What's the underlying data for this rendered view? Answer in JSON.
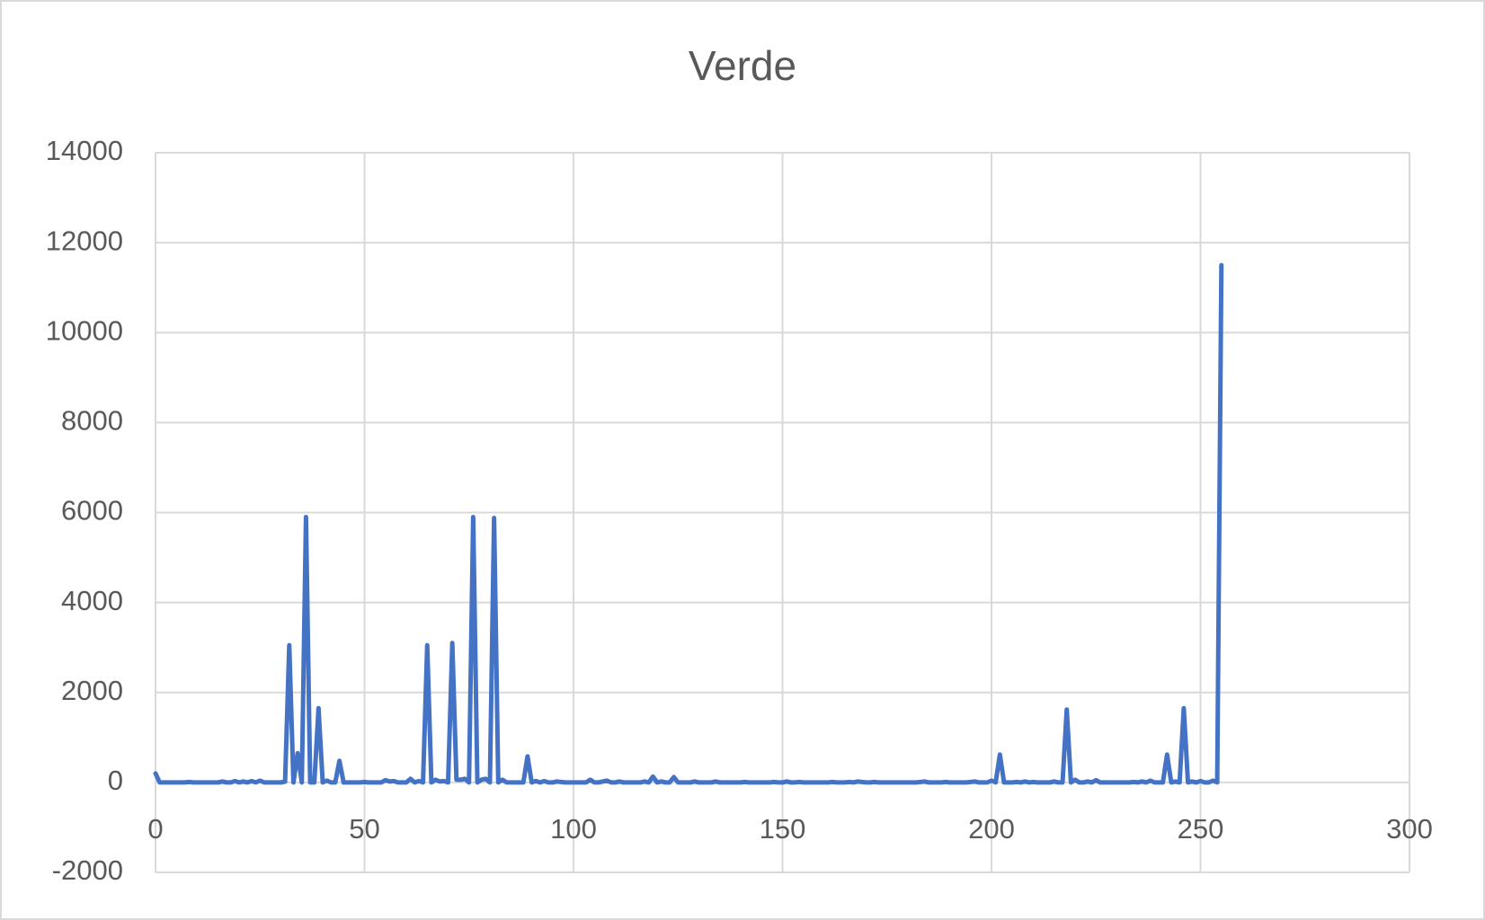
{
  "chart_data": {
    "type": "line",
    "title": "Verde",
    "x": [
      0,
      1,
      2,
      3,
      4,
      5,
      6,
      7,
      8,
      9,
      10,
      11,
      12,
      13,
      14,
      15,
      16,
      17,
      18,
      19,
      20,
      21,
      22,
      23,
      24,
      25,
      26,
      27,
      28,
      29,
      30,
      31,
      32,
      33,
      34,
      35,
      36,
      37,
      38,
      39,
      40,
      41,
      42,
      43,
      44,
      45,
      46,
      47,
      48,
      49,
      50,
      51,
      52,
      53,
      54,
      55,
      56,
      57,
      58,
      59,
      60,
      61,
      62,
      63,
      64,
      65,
      66,
      67,
      68,
      69,
      70,
      71,
      72,
      73,
      74,
      75,
      76,
      77,
      78,
      79,
      80,
      81,
      82,
      83,
      84,
      85,
      86,
      87,
      88,
      89,
      90,
      91,
      92,
      93,
      94,
      95,
      96,
      97,
      98,
      99,
      100,
      101,
      102,
      103,
      104,
      105,
      106,
      107,
      108,
      109,
      110,
      111,
      112,
      113,
      114,
      115,
      116,
      117,
      118,
      119,
      120,
      121,
      122,
      123,
      124,
      125,
      126,
      127,
      128,
      129,
      130,
      131,
      132,
      133,
      134,
      135,
      136,
      137,
      138,
      139,
      140,
      141,
      142,
      143,
      144,
      145,
      146,
      147,
      148,
      149,
      150,
      151,
      152,
      153,
      154,
      155,
      156,
      157,
      158,
      159,
      160,
      161,
      162,
      163,
      164,
      165,
      166,
      167,
      168,
      169,
      170,
      171,
      172,
      173,
      174,
      175,
      176,
      177,
      178,
      179,
      180,
      181,
      182,
      183,
      184,
      185,
      186,
      187,
      188,
      189,
      190,
      191,
      192,
      193,
      194,
      195,
      196,
      197,
      198,
      199,
      200,
      201,
      202,
      203,
      204,
      205,
      206,
      207,
      208,
      209,
      210,
      211,
      212,
      213,
      214,
      215,
      216,
      217,
      218,
      219,
      220,
      221,
      222,
      223,
      224,
      225,
      226,
      227,
      228,
      229,
      230,
      231,
      232,
      233,
      234,
      235,
      236,
      237,
      238,
      239,
      240,
      241,
      242,
      243,
      244,
      245,
      246,
      247,
      248,
      249,
      250,
      251,
      252,
      253,
      254,
      255
    ],
    "series": [
      {
        "name": "Verde",
        "color": "#4472c4",
        "values": [
          200,
          0,
          0,
          0,
          0,
          0,
          0,
          0,
          10,
          0,
          0,
          0,
          0,
          0,
          0,
          0,
          20,
          0,
          0,
          30,
          0,
          20,
          0,
          30,
          0,
          40,
          0,
          0,
          0,
          0,
          0,
          20,
          3050,
          0,
          650,
          0,
          5900,
          0,
          0,
          1650,
          0,
          40,
          0,
          0,
          480,
          0,
          0,
          0,
          0,
          0,
          10,
          0,
          0,
          0,
          0,
          50,
          20,
          30,
          0,
          0,
          0,
          80,
          0,
          30,
          0,
          3050,
          0,
          60,
          20,
          30,
          0,
          3100,
          60,
          60,
          80,
          0,
          5900,
          0,
          60,
          80,
          0,
          5880,
          0,
          60,
          0,
          0,
          0,
          0,
          0,
          580,
          0,
          30,
          0,
          30,
          0,
          0,
          20,
          10,
          0,
          0,
          0,
          0,
          0,
          0,
          60,
          0,
          0,
          20,
          40,
          0,
          0,
          20,
          0,
          0,
          0,
          0,
          0,
          20,
          0,
          130,
          0,
          20,
          0,
          0,
          120,
          0,
          0,
          0,
          0,
          20,
          0,
          0,
          0,
          0,
          20,
          0,
          0,
          0,
          0,
          0,
          0,
          10,
          0,
          0,
          0,
          0,
          0,
          0,
          10,
          0,
          0,
          20,
          0,
          0,
          10,
          0,
          0,
          0,
          0,
          0,
          0,
          0,
          10,
          0,
          0,
          0,
          10,
          0,
          20,
          10,
          0,
          0,
          10,
          0,
          0,
          0,
          0,
          0,
          0,
          0,
          0,
          0,
          0,
          10,
          20,
          0,
          0,
          0,
          0,
          10,
          0,
          0,
          0,
          0,
          0,
          10,
          20,
          0,
          0,
          0,
          40,
          0,
          620,
          0,
          0,
          0,
          10,
          0,
          20,
          0,
          10,
          0,
          0,
          0,
          0,
          20,
          0,
          0,
          1620,
          0,
          60,
          0,
          0,
          20,
          0,
          50,
          0,
          0,
          0,
          0,
          0,
          0,
          0,
          0,
          10,
          0,
          20,
          0,
          40,
          0,
          0,
          0,
          620,
          0,
          20,
          0,
          1650,
          0,
          20,
          0,
          30,
          0,
          0,
          40,
          0,
          11500
        ]
      }
    ],
    "xlim": [
      0,
      300
    ],
    "xticks": [
      0,
      50,
      100,
      150,
      200,
      250,
      300
    ],
    "ylim": [
      -2000,
      14000
    ],
    "yticks": [
      -2000,
      0,
      2000,
      4000,
      6000,
      8000,
      10000,
      12000,
      14000
    ],
    "grid": true
  }
}
